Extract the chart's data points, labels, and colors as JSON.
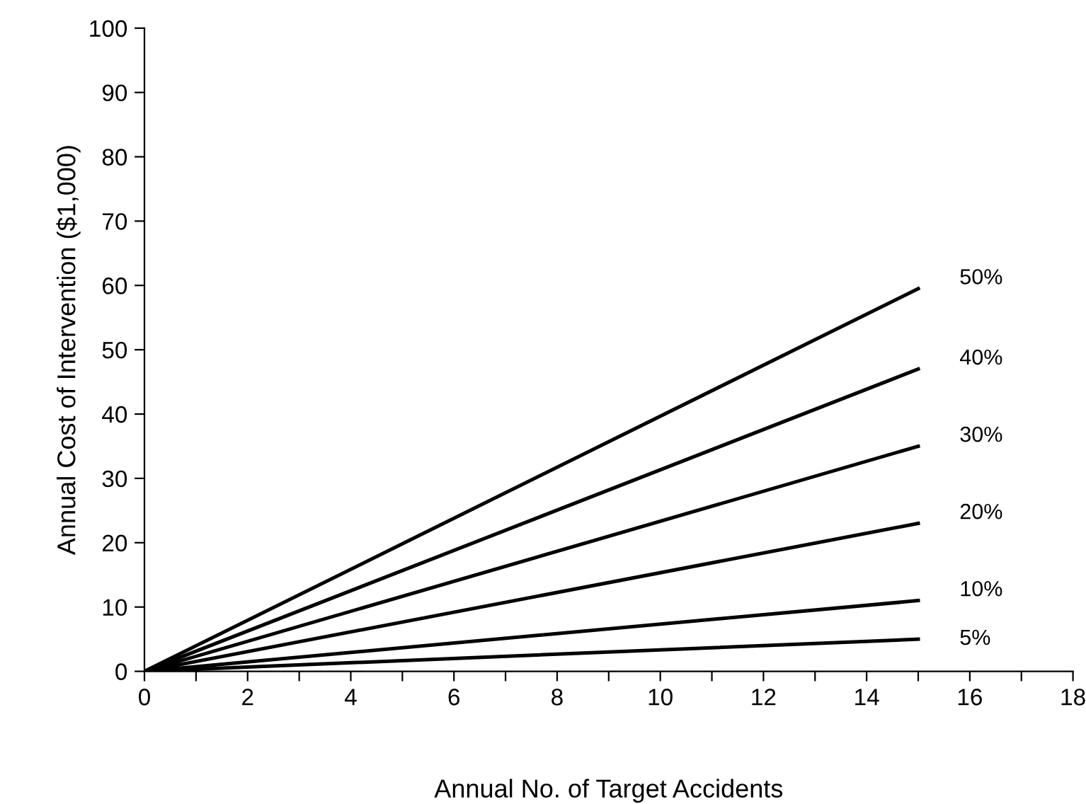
{
  "chart_data": {
    "type": "line",
    "xlabel": "Annual No. of Target Accidents",
    "ylabel": "Annual Cost of Intervention ($1,000)",
    "x": [
      0,
      15
    ],
    "series": [
      {
        "name": "50%",
        "color": "#000000",
        "values": [
          0,
          59.5
        ]
      },
      {
        "name": "40%",
        "color": "#000000",
        "values": [
          0,
          47
        ]
      },
      {
        "name": "30%",
        "color": "#000000",
        "values": [
          0,
          35
        ]
      },
      {
        "name": "20%",
        "color": "#000000",
        "values": [
          0,
          23
        ]
      },
      {
        "name": "10%",
        "color": "#000000",
        "values": [
          0,
          11
        ]
      },
      {
        "name": "5%",
        "color": "#000000",
        "values": [
          0,
          5
        ]
      }
    ],
    "xlim": [
      0,
      18
    ],
    "ylim": [
      0,
      100
    ],
    "xticks": [
      0,
      {
        "value": 1,
        "label": null
      },
      2,
      {
        "value": 3,
        "label": null
      },
      4,
      {
        "value": 5,
        "label": null
      },
      6,
      {
        "value": 7,
        "label": null
      },
      8,
      {
        "value": 9,
        "label": null
      },
      10,
      {
        "value": 11,
        "label": null
      },
      12,
      {
        "value": 13,
        "label": null
      },
      14,
      {
        "value": 15,
        "label": null
      },
      16,
      {
        "value": 17,
        "label": null
      },
      18
    ],
    "yticks": [
      0,
      10,
      20,
      30,
      40,
      50,
      60,
      70,
      80,
      90,
      100
    ],
    "grid": false,
    "legend": false,
    "marker": "none",
    "line_style": "solid"
  }
}
